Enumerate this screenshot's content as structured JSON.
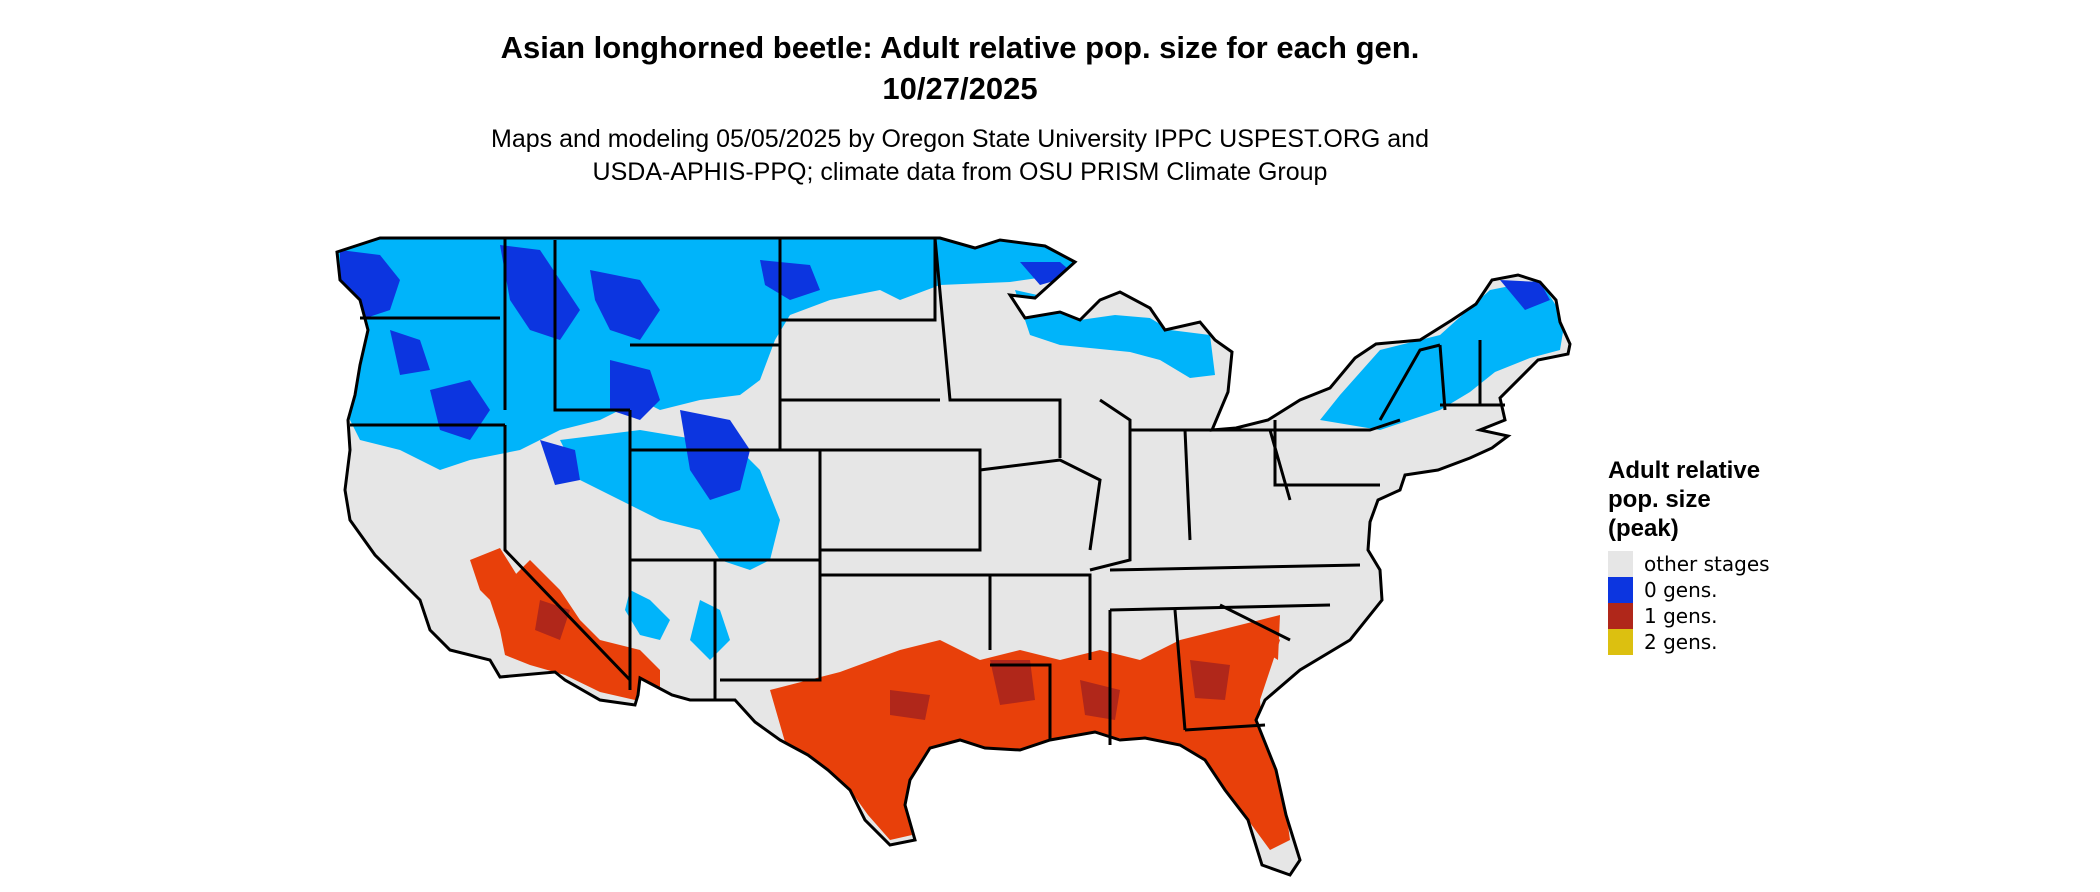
{
  "title": {
    "line1": "Asian longhorned beetle: Adult relative pop. size for each gen.",
    "line2": "10/27/2025"
  },
  "subtitle": {
    "line1": "Maps and modeling 05/05/2025 by Oregon State University IPPC USPEST.ORG and",
    "line2": "USDA-APHIS-PPQ; climate data from OSU PRISM Climate Group"
  },
  "legend": {
    "title_line1": "Adult relative",
    "title_line2": "pop. size",
    "title_line3": "(peak)",
    "items": [
      {
        "label": "other stages",
        "color": "#e6e6e6"
      },
      {
        "label": "0 gens.",
        "color": "#0c35e0"
      },
      {
        "label": "1 gens.",
        "color": "#b0271a"
      },
      {
        "label": "2 gens.",
        "color": "#dcc010"
      }
    ]
  },
  "map": {
    "region": "Contiguous United States",
    "colors": {
      "background": "#e6e6e6",
      "zero_gens_light": "#00b4fa",
      "zero_gens_dark": "#0c35e0",
      "one_gen": "#e8400a",
      "one_gen_dark": "#b0271a",
      "borders": "#000000"
    }
  }
}
